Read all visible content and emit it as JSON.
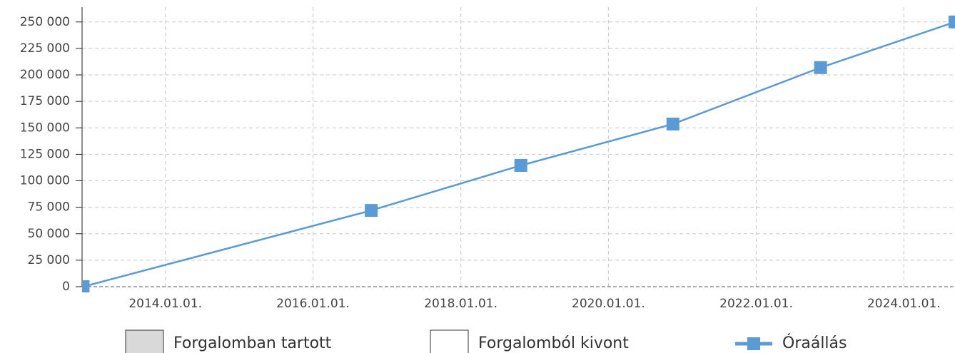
{
  "chart_data": {
    "type": "line",
    "x": [
      "2012-11-20",
      "2016-10-15",
      "2018-10-25",
      "2020-11-15",
      "2022-11-15",
      "2024-09-10"
    ],
    "series": [
      {
        "name": "Óraállás",
        "color": "#5b9bd5",
        "values": [
          0,
          72000,
          114500,
          153600,
          206900,
          250000
        ]
      }
    ],
    "bands": [
      {
        "name": "Forgalomban tartott",
        "color": "#d9d9d9"
      },
      {
        "name": "Forgalomból kivont",
        "color": "#ffffff"
      }
    ],
    "xlim": [
      "2012-11-15",
      "2024-09-10"
    ],
    "xticks": [
      {
        "value": "2014-01-01",
        "label": "2014.01.01."
      },
      {
        "value": "2016-01-01",
        "label": "2016.01.01."
      },
      {
        "value": "2018-01-01",
        "label": "2018.01.01."
      },
      {
        "value": "2020-01-01",
        "label": "2020.01.01."
      },
      {
        "value": "2022-01-01",
        "label": "2022.01.01."
      },
      {
        "value": "2024-01-01",
        "label": "2024.01.01."
      }
    ],
    "ylim": [
      0,
      264000
    ],
    "yticks": [
      0,
      {
        "value": 25000,
        "label": "25 000"
      },
      {
        "value": 50000,
        "label": "50 000"
      },
      {
        "value": 75000,
        "label": "75 000"
      },
      {
        "value": 100000,
        "label": "100 000"
      },
      {
        "value": 125000,
        "label": "125 000"
      },
      {
        "value": 150000,
        "label": "150 000"
      },
      {
        "value": 175000,
        "label": "175 000"
      },
      {
        "value": 200000,
        "label": "200 000"
      },
      {
        "value": 225000,
        "label": "225 000"
      },
      {
        "value": 250000,
        "label": "250 000"
      }
    ],
    "grid": true
  }
}
